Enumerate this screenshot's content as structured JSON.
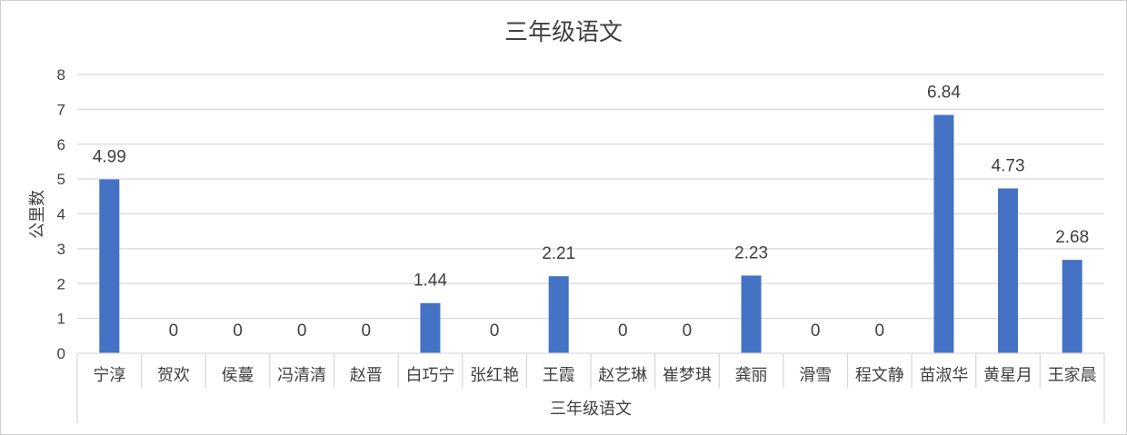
{
  "chart_data": {
    "type": "bar",
    "title": "三年级语文",
    "ylabel": "公里数",
    "group_label": "三年级语文",
    "ylim": [
      0,
      8
    ],
    "yticks": [
      "0",
      "1",
      "2",
      "3",
      "4",
      "5",
      "6",
      "7",
      "8"
    ],
    "grid": true,
    "bar_color": "#4472C4",
    "categories": [
      "宁淳",
      "贺欢",
      "侯蔓",
      "冯清清",
      "赵晋",
      "白巧宁",
      "张红艳",
      "王霞",
      "赵艺琳",
      "崔梦琪",
      "龚丽",
      "滑雪",
      "程文静",
      "苗淑华",
      "黄星月",
      "王家晨"
    ],
    "values": [
      4.99,
      0,
      0,
      0,
      0,
      1.44,
      0,
      2.21,
      0,
      0,
      2.23,
      0,
      0,
      6.84,
      4.73,
      2.68
    ],
    "data_labels": [
      "4.99",
      "0",
      "0",
      "0",
      "0",
      "1.44",
      "0",
      "2.21",
      "0",
      "0",
      "2.23",
      "0",
      "0",
      "6.84",
      "4.73",
      "2.68"
    ]
  }
}
